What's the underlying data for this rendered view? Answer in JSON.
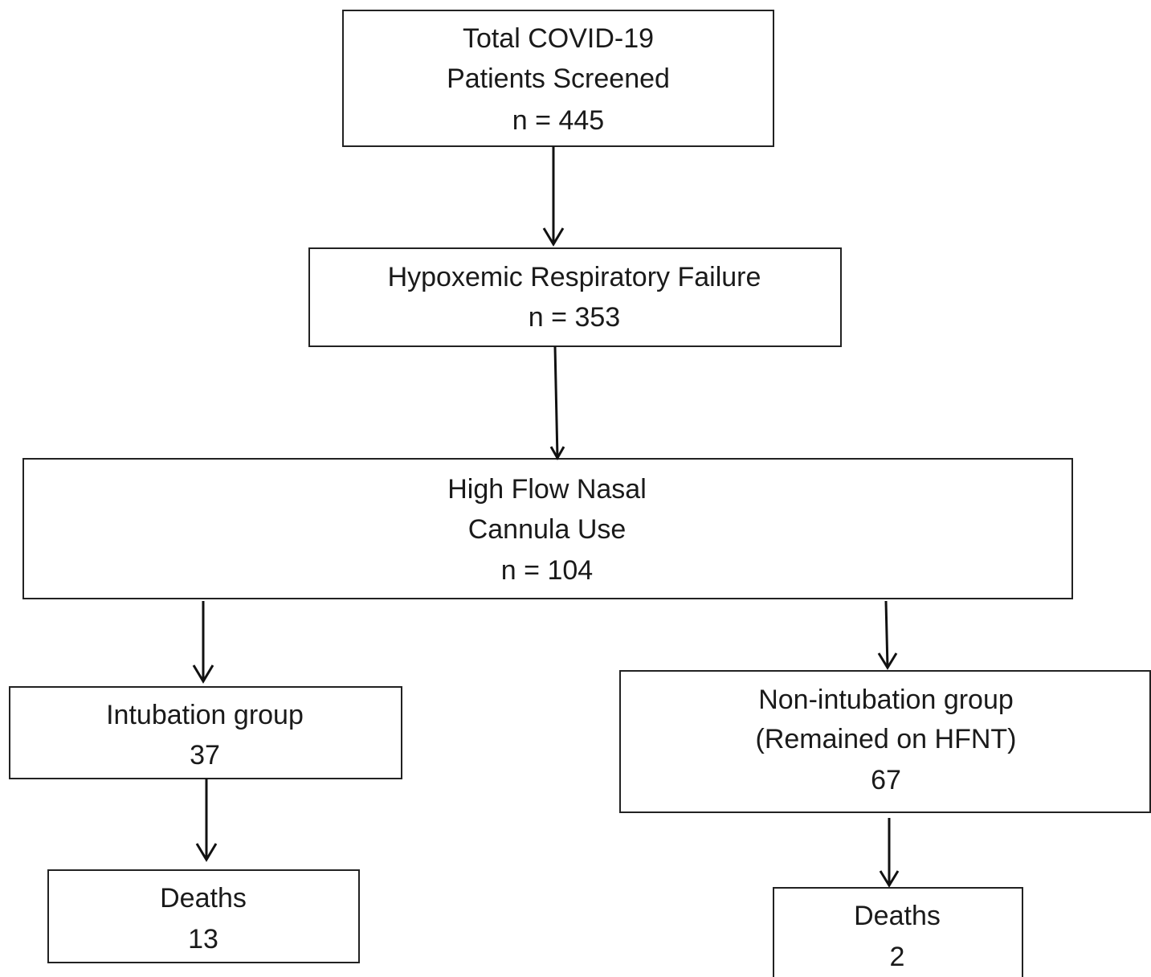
{
  "nodes": [
    {
      "lines": [
        "Total COVID-19",
        "Patients Screened",
        "n = 445"
      ]
    },
    {
      "lines": [
        "Hypoxemic Respiratory Failure",
        "n = 353"
      ]
    },
    {
      "lines": [
        "High Flow Nasal",
        "Cannula Use",
        "n = 104"
      ]
    },
    {
      "lines": [
        "Intubation group",
        "37"
      ]
    },
    {
      "lines": [
        "Non-intubation group",
        "(Remained on HFNT)",
        "67"
      ]
    },
    {
      "lines": [
        "Deaths",
        "13"
      ]
    },
    {
      "lines": [
        "Deaths",
        "2"
      ]
    }
  ]
}
